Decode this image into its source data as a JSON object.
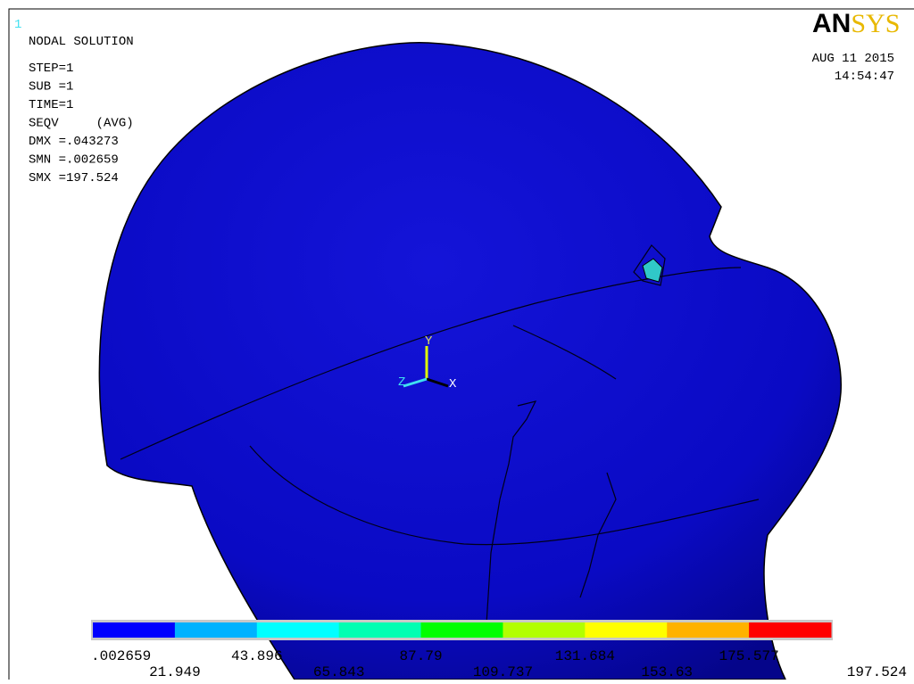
{
  "viewport_label": "1",
  "header": {
    "title": "NODAL SOLUTION",
    "lines": [
      "STEP=1",
      "SUB =1",
      "TIME=1",
      "SEQV     (AVG)",
      "DMX =.043273",
      "SMN =.002659",
      "SMX =197.524"
    ]
  },
  "logo": {
    "an": "AN",
    "sys": "SYS"
  },
  "date": "AUG 11 2015",
  "time": "14:54:47",
  "triad": {
    "x": "X",
    "y": "Y",
    "z": "Z"
  },
  "legend": {
    "colors": [
      "#0000ff",
      "#00b2ff",
      "#00ffff",
      "#00ffb2",
      "#00ff00",
      "#b2ff00",
      "#ffff00",
      "#ffb200",
      "#ff0000"
    ],
    "labels": [
      ".002659",
      "21.949",
      "43.896",
      "65.843",
      "87.79",
      "109.737",
      "131.684",
      "153.63",
      "175.577",
      "197.524"
    ]
  }
}
